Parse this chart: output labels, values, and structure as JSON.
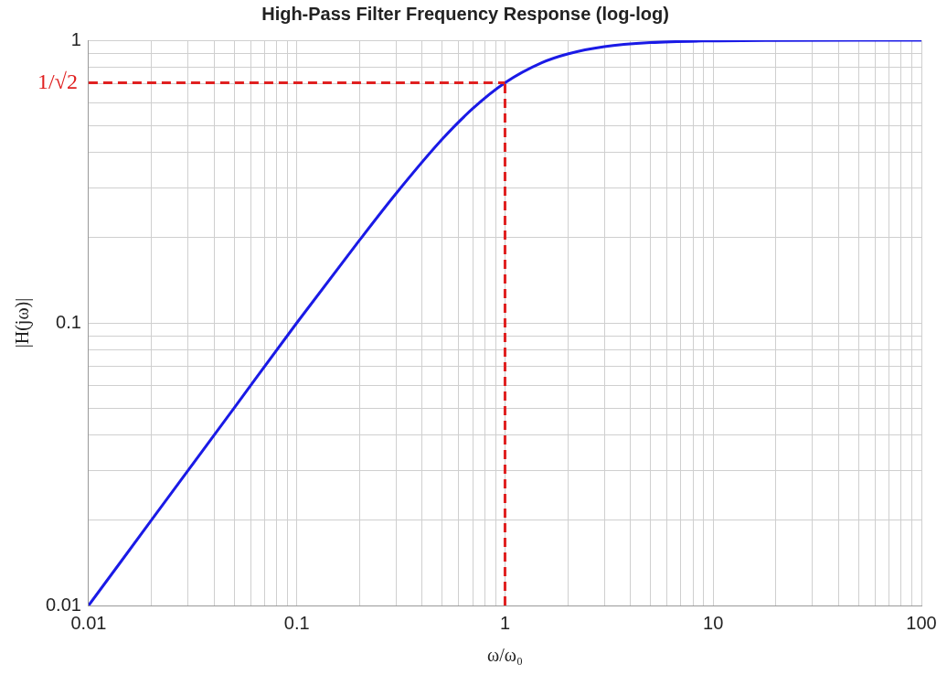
{
  "chart_data": {
    "type": "line",
    "title": "High-Pass Filter Frequency Response (log-log)",
    "xlabel": "ω/ω₀",
    "ylabel": "|H(jω)|",
    "log": "xy",
    "grid": true,
    "legend": false,
    "marker": "none",
    "line_style": "solid",
    "xlim": [
      0.01,
      100
    ],
    "ylim": [
      0.01,
      1
    ],
    "xticks": [
      0.01,
      {
        "value": 0.02,
        "label": null
      },
      {
        "value": 0.03,
        "label": null
      },
      {
        "value": 0.04,
        "label": null
      },
      {
        "value": 0.05,
        "label": null
      },
      {
        "value": 0.06,
        "label": null
      },
      {
        "value": 0.07,
        "label": null
      },
      {
        "value": 0.08,
        "label": null
      },
      {
        "value": 0.09,
        "label": null
      },
      0.1,
      {
        "value": 0.2,
        "label": null
      },
      {
        "value": 0.3,
        "label": null
      },
      {
        "value": 0.4,
        "label": null
      },
      {
        "value": 0.5,
        "label": null
      },
      {
        "value": 0.6,
        "label": null
      },
      {
        "value": 0.7,
        "label": null
      },
      {
        "value": 0.8,
        "label": null
      },
      {
        "value": 0.9,
        "label": null
      },
      1,
      {
        "value": 2,
        "label": null
      },
      {
        "value": 3,
        "label": null
      },
      {
        "value": 4,
        "label": null
      },
      {
        "value": 5,
        "label": null
      },
      {
        "value": 6,
        "label": null
      },
      {
        "value": 7,
        "label": null
      },
      {
        "value": 8,
        "label": null
      },
      {
        "value": 9,
        "label": null
      },
      10,
      {
        "value": 20,
        "label": null
      },
      {
        "value": 30,
        "label": null
      },
      {
        "value": 40,
        "label": null
      },
      {
        "value": 50,
        "label": null
      },
      {
        "value": 60,
        "label": null
      },
      {
        "value": 70,
        "label": null
      },
      {
        "value": 80,
        "label": null
      },
      {
        "value": 90,
        "label": null
      },
      100
    ],
    "yticks": [
      0.01,
      {
        "value": 0.02,
        "label": null
      },
      {
        "value": 0.03,
        "label": null
      },
      {
        "value": 0.04,
        "label": null
      },
      {
        "value": 0.05,
        "label": null
      },
      {
        "value": 0.06,
        "label": null
      },
      {
        "value": 0.07,
        "label": null
      },
      {
        "value": 0.08,
        "label": null
      },
      {
        "value": 0.09,
        "label": null
      },
      0.1,
      {
        "value": 0.2,
        "label": null
      },
      {
        "value": 0.3,
        "label": null
      },
      {
        "value": 0.4,
        "label": null
      },
      {
        "value": 0.5,
        "label": null
      },
      {
        "value": 0.6,
        "label": null
      },
      {
        "value": 0.7,
        "label": null
      },
      {
        "value": 0.8,
        "label": null
      },
      {
        "value": 0.9,
        "label": null
      },
      1
    ],
    "ref_lines": [
      {
        "axis": "y",
        "value": 0.707,
        "label": "1/√2",
        "color": "#e02020",
        "line_style": "dashed"
      },
      {
        "axis": "x",
        "value": 1,
        "color": "#e02020",
        "line_style": "dashed"
      }
    ],
    "series": [
      {
        "color": "#1a1ae6",
        "x": [
          0.01,
          0.02,
          0.05,
          0.1,
          0.2,
          0.3,
          0.5,
          0.7,
          1,
          1.5,
          2,
          3,
          5,
          10,
          20,
          50,
          100
        ],
        "values": [
          0.01,
          0.02,
          0.05,
          0.1,
          0.196,
          0.287,
          0.447,
          0.573,
          0.707,
          0.832,
          0.894,
          0.949,
          0.981,
          0.995,
          0.999,
          1,
          1
        ]
      }
    ]
  }
}
